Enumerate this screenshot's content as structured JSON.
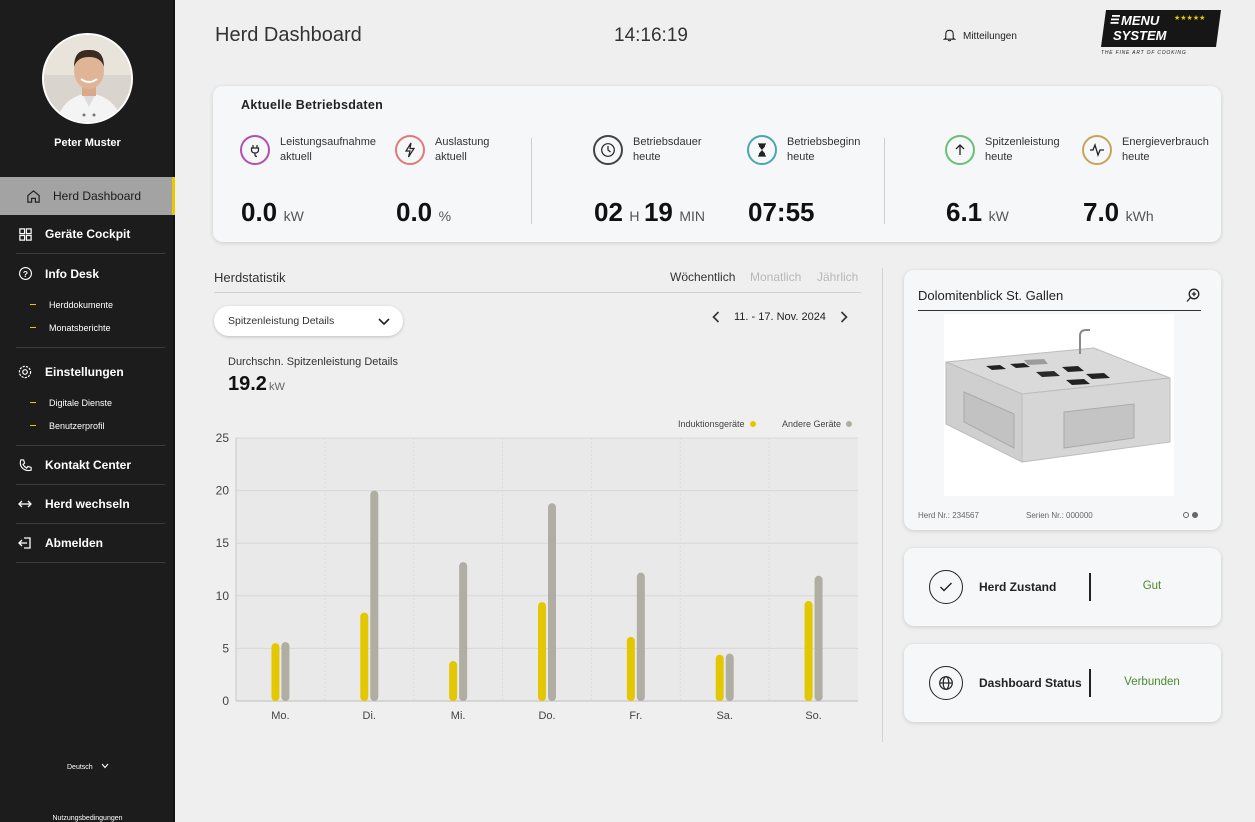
{
  "user": {
    "name": "Peter Muster"
  },
  "sidebar": {
    "items": [
      {
        "label": "Herd Dashboard"
      },
      {
        "label": "Geräte Cockpit"
      },
      {
        "label": "Info Desk",
        "sub": [
          "Herddokumente",
          "Monatsberichte"
        ]
      },
      {
        "label": "Einstellungen",
        "sub": [
          "Digitale Dienste",
          "Benutzerprofil"
        ]
      },
      {
        "label": "Kontakt Center"
      },
      {
        "label": "Herd wechseln"
      },
      {
        "label": "Abmelden"
      }
    ],
    "language": "Deutsch",
    "terms": "Nutzungsbedingungen"
  },
  "header": {
    "title": "Herd Dashboard",
    "time": "14:16:19",
    "notifications": "Mitteilungen",
    "logo_line1": "MENU",
    "logo_line2": "SYSTEM",
    "logo_stars": "★★★★★",
    "logo_tagline": "THE FINE ART OF COOKING"
  },
  "operations": {
    "title": "Aktuelle Betriebsdaten",
    "metrics": [
      {
        "label1": "Leistungsaufnahme",
        "label2": "aktuell",
        "value": "0.0",
        "unit": "kW",
        "color": "#b24fb0",
        "icon": "plug-icon"
      },
      {
        "label1": "Auslastung",
        "label2": "aktuell",
        "value": "0.0",
        "unit": "%",
        "color": "#e07a7a",
        "icon": "lightning-icon"
      },
      {
        "label1": "Betriebsdauer",
        "label2": "heute",
        "value_h": "02",
        "unit_h": "H",
        "value_m": "19",
        "unit_m": "MIN",
        "color": "#444444",
        "icon": "clock-icon"
      },
      {
        "label1": "Betriebsbeginn",
        "label2": "heute",
        "value": "07:55",
        "color": "#4aa6b0",
        "icon": "hourglass-icon"
      },
      {
        "label1": "Spitzenleistung",
        "label2": "heute",
        "value": "6.1",
        "unit": "kW",
        "color": "#6bbf74",
        "icon": "arrow-up-icon"
      },
      {
        "label1": "Energieverbrauch",
        "label2": "heute",
        "value": "7.0",
        "unit": "kWh",
        "color": "#c9a35a",
        "icon": "pulse-icon"
      }
    ]
  },
  "stats": {
    "title": "Herdstatistik",
    "periods": [
      "Wöchentlich",
      "Monatlich",
      "Jährlich"
    ],
    "dropdown": "Spitzenleistung Details",
    "date_range": "11. - 17. Nov. 2024",
    "avg_label": "Durchschn. Spitzenleistung Details",
    "avg_value": "19.2",
    "avg_unit": "kW",
    "legend": [
      "Induktionsgeräte",
      "Andere Geräte"
    ]
  },
  "chart_data": {
    "type": "bar",
    "categories": [
      "Mo.",
      "Di.",
      "Mi.",
      "Do.",
      "Fr.",
      "Sa.",
      "So."
    ],
    "series": [
      {
        "name": "Induktionsgeräte",
        "color": "#e3c700",
        "values": [
          5.5,
          8.4,
          3.8,
          9.4,
          6.1,
          4.4,
          9.5
        ]
      },
      {
        "name": "Andere Geräte",
        "color": "#b0ada3",
        "values": [
          5.6,
          20.0,
          13.2,
          18.8,
          12.2,
          4.5,
          11.9
        ]
      }
    ],
    "ylim": [
      0,
      25
    ],
    "yticks": [
      0,
      5,
      10,
      15,
      20,
      25
    ],
    "grid": true,
    "legend": "top-right"
  },
  "device": {
    "name": "Dolomitenblick St. Gallen",
    "herd_nr": "Herd Nr.: 234567",
    "serien_nr": "Serien Nr.: 000000"
  },
  "status": [
    {
      "label": "Herd Zustand",
      "value": "Gut",
      "icon": "check-icon"
    },
    {
      "label": "Dashboard Status",
      "value": "Verbunden",
      "icon": "globe-icon"
    }
  ]
}
